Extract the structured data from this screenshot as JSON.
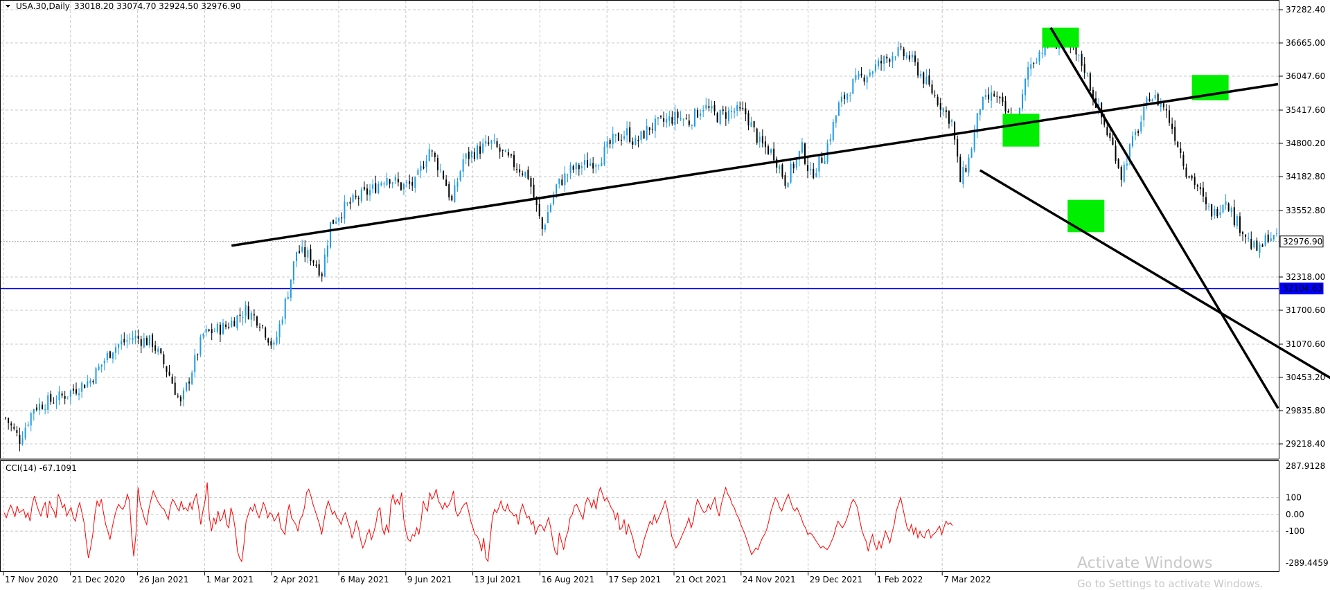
{
  "header": {
    "symbol": "USA.30,Daily",
    "ohlc": "33018.20 33074.70 32924.50 32976.90"
  },
  "indicator": {
    "label": "CCI(14) -67.1091"
  },
  "watermark": {
    "line1": "Activate Windows",
    "line2": "Go to Settings to activate Windows."
  },
  "colors": {
    "bull": "#1e9be6",
    "bear": "#000000",
    "grid": "#c8c8c8",
    "hline": "#0000ff",
    "cci": "#ff0000",
    "trend": "#000000",
    "marker": "#00ee00"
  },
  "chart_data": [
    {
      "type": "candlestick",
      "title": "USA.30,Daily",
      "y_ticks": [
        "37282.40",
        "36665.00",
        "36047.60",
        "35417.60",
        "34800.20",
        "34182.80",
        "33552.80",
        "32318.00",
        "31700.60",
        "31070.60",
        "30453.20",
        "29835.80",
        "29218.40"
      ],
      "ylim": [
        29100,
        37400
      ],
      "x_ticks": [
        "17 Nov 2020",
        "21 Dec 2020",
        "26 Jan 2021",
        "1 Mar 2021",
        "2 Apr 2021",
        "6 May 2021",
        "9 Jun 2021",
        "13 Jul 2021",
        "16 Aug 2021",
        "17 Sep 2021",
        "21 Oct 2021",
        "24 Nov 2021",
        "29 Dec 2021",
        "1 Feb 2022",
        "7 Mar 2022"
      ],
      "price_labels": [
        {
          "value": 32976.9,
          "text": "32976.90",
          "style": "current"
        },
        {
          "value": 32104.63,
          "text": "32104.63",
          "style": "hline"
        }
      ],
      "horizontal_line": 32104.63,
      "close_anchors": [
        [
          0,
          29700
        ],
        [
          5,
          29300
        ],
        [
          10,
          29900
        ],
        [
          20,
          30100
        ],
        [
          30,
          30400
        ],
        [
          38,
          31000
        ],
        [
          45,
          31200
        ],
        [
          52,
          31100
        ],
        [
          58,
          30500
        ],
        [
          62,
          29950
        ],
        [
          70,
          31250
        ],
        [
          78,
          31400
        ],
        [
          85,
          31700
        ],
        [
          90,
          31500
        ],
        [
          95,
          31000
        ],
        [
          100,
          32050
        ],
        [
          103,
          32800
        ],
        [
          108,
          32700
        ],
        [
          112,
          32400
        ],
        [
          115,
          33300
        ],
        [
          120,
          33600
        ],
        [
          125,
          33800
        ],
        [
          130,
          33950
        ],
        [
          135,
          34200
        ],
        [
          140,
          34000
        ],
        [
          145,
          34050
        ],
        [
          150,
          34700
        ],
        [
          155,
          34200
        ],
        [
          158,
          33700
        ],
        [
          162,
          34500
        ],
        [
          168,
          34700
        ],
        [
          172,
          34800
        ],
        [
          178,
          34500
        ],
        [
          185,
          34200
        ],
        [
          190,
          33200
        ],
        [
          195,
          34000
        ],
        [
          200,
          34300
        ],
        [
          205,
          34400
        ],
        [
          210,
          34500
        ],
        [
          215,
          34850
        ],
        [
          220,
          35000
        ],
        [
          223,
          34800
        ],
        [
          228,
          35100
        ],
        [
          233,
          35200
        ],
        [
          238,
          35300
        ],
        [
          242,
          35200
        ],
        [
          247,
          35500
        ],
        [
          252,
          35300
        ],
        [
          258,
          35400
        ],
        [
          262,
          35350
        ],
        [
          267,
          34800
        ],
        [
          272,
          34600
        ],
        [
          276,
          34100
        ],
        [
          282,
          34700
        ],
        [
          285,
          34200
        ],
        [
          290,
          34600
        ],
        [
          295,
          35500
        ],
        [
          300,
          35900
        ],
        [
          305,
          36100
        ],
        [
          310,
          36300
        ],
        [
          315,
          36500
        ],
        [
          320,
          36400
        ],
        [
          325,
          36000
        ],
        [
          330,
          35600
        ],
        [
          335,
          35200
        ],
        [
          338,
          34100
        ],
        [
          341,
          34500
        ],
        [
          345,
          35500
        ],
        [
          350,
          35700
        ],
        [
          355,
          35300
        ],
        [
          358,
          35100
        ],
        [
          362,
          36200
        ],
        [
          366,
          36500
        ],
        [
          370,
          36700
        ],
        [
          375,
          36600
        ],
        [
          378,
          36500
        ],
        [
          382,
          36200
        ],
        [
          385,
          35700
        ],
        [
          390,
          35000
        ],
        [
          393,
          34600
        ],
        [
          395,
          34200
        ],
        [
          398,
          34700
        ],
        [
          402,
          35200
        ],
        [
          405,
          35700
        ],
        [
          410,
          35500
        ],
        [
          413,
          35100
        ],
        [
          415,
          34800
        ],
        [
          418,
          34300
        ],
        [
          422,
          34000
        ],
        [
          425,
          33600
        ],
        [
          428,
          33500
        ],
        [
          432,
          33800
        ],
        [
          435,
          33400
        ],
        [
          438,
          33200
        ],
        [
          441,
          32900
        ],
        [
          444,
          32800
        ],
        [
          447,
          33100
        ],
        [
          450,
          33000
        ]
      ],
      "candle_count": 451,
      "trendlines": [
        {
          "from": [
            80,
            32900
          ],
          "to": [
            575,
            35900
          ]
        },
        {
          "from": [
            370,
            36950
          ],
          "to": [
            575,
            29880
          ]
        },
        {
          "from": [
            345,
            34300
          ],
          "to": [
            509,
            29200
          ]
        }
      ],
      "markers": [
        {
          "x0": 367,
          "x1": 380,
          "y0": 36950,
          "y1": 36580
        },
        {
          "x0": 420,
          "x1": 433,
          "y0": 36070,
          "y1": 35600
        },
        {
          "x0": 353,
          "x1": 366,
          "y0": 35350,
          "y1": 34740
        },
        {
          "x0": 376,
          "x1": 389,
          "y0": 33750,
          "y1": 33150
        }
      ]
    },
    {
      "type": "line",
      "title": "CCI(14) -67.1091",
      "y_ticks": [
        {
          "v": 287.9128,
          "t": "287.9128"
        },
        {
          "v": 100,
          "t": "100"
        },
        {
          "v": 0,
          "t": "0.00"
        },
        {
          "v": -100,
          "t": "-100"
        },
        {
          "v": -289.4459,
          "t": "-289.4459"
        }
      ],
      "ylim": [
        -289.4459,
        287.9128
      ],
      "series": [
        {
          "values": [
            10,
            -20,
            20,
            55,
            25,
            -15,
            50,
            10,
            20,
            30,
            -20,
            10,
            -40,
            60,
            110,
            60,
            20,
            -10,
            40,
            70,
            -20,
            80,
            40,
            20,
            -20,
            120,
            90,
            40,
            60,
            -10,
            20,
            40,
            -20,
            -40,
            30,
            70,
            10,
            -50,
            -160,
            -260,
            -200,
            -120,
            0,
            80,
            50,
            90,
            10,
            -60,
            -100,
            -150,
            -80,
            -20,
            30,
            60,
            40,
            30,
            60,
            120,
            80,
            -120,
            -250,
            -120,
            160,
            60,
            20,
            -30,
            -60,
            30,
            90,
            140,
            110,
            80,
            60,
            40,
            30,
            0,
            -30,
            50,
            90,
            70,
            40,
            20,
            80,
            30,
            40,
            20,
            70,
            30,
            90,
            120,
            40,
            -60,
            20,
            80,
            190,
            -20,
            -100,
            -20,
            -60,
            20,
            -40,
            -20,
            30,
            -60,
            -80,
            40,
            -10,
            -90,
            -220,
            -260,
            -280,
            -180,
            -40,
            0,
            40,
            20,
            60,
            10,
            -20,
            20,
            70,
            40,
            -20,
            10,
            0,
            -40,
            -20,
            10,
            -80,
            -100,
            -120,
            0,
            60,
            -20,
            -40,
            -60,
            -100,
            -30,
            -10,
            40,
            130,
            150,
            110,
            60,
            20,
            -20,
            -60,
            -120,
            -40,
            30,
            80,
            40,
            0,
            20,
            -20,
            -30,
            -60,
            -10,
            10,
            -40,
            -80,
            -140,
            -100,
            -40,
            -80,
            -150,
            -200,
            -170,
            -120,
            -90,
            -150,
            -110,
            -60,
            20,
            40,
            -80,
            -120,
            -60,
            -110,
            60,
            120,
            60,
            90,
            60,
            130,
            -30,
            -100,
            -150,
            -160,
            -120,
            -130,
            -80,
            -120,
            -40,
            80,
            40,
            20,
            130,
            90,
            110,
            150,
            80,
            60,
            30,
            70,
            40,
            60,
            90,
            140,
            20,
            -10,
            10,
            40,
            60,
            70,
            20,
            -40,
            -80,
            -120,
            -130,
            -160,
            -220,
            -140,
            -260,
            -280,
            -140,
            -20,
            30,
            10,
            40,
            80,
            30,
            20,
            60,
            20,
            10,
            -10,
            0,
            -60,
            20,
            60,
            20,
            -20,
            -10,
            -60,
            -40,
            -120,
            -80,
            -60,
            -70,
            -100,
            -60,
            -20,
            -80,
            -160,
            -220,
            -240,
            -110,
            -160,
            -210,
            -140,
            -100,
            -20,
            0,
            50,
            60,
            30,
            0,
            -30,
            60,
            100,
            80,
            40,
            90,
            30,
            120,
            160,
            120,
            80,
            100,
            70,
            40,
            20,
            -30,
            10,
            -90,
            -80,
            -30,
            -120,
            -60,
            -100,
            -140,
            -200,
            -240,
            -260,
            -220,
            -160,
            -120,
            -80,
            -40,
            -60,
            0,
            -50,
            -20,
            10,
            40,
            80,
            30,
            -40,
            -130,
            -160,
            -200,
            -180,
            -150,
            -120,
            -90,
            -60,
            -20,
            -80,
            -40,
            40,
            90,
            60,
            30,
            10,
            20,
            60,
            30,
            70,
            100,
            30,
            -10,
            60,
            110,
            160,
            120,
            100,
            60,
            40,
            0,
            -20,
            -60,
            -90,
            -120,
            -160,
            -200,
            -240,
            -220,
            -200,
            -210,
            -170,
            -140,
            -120,
            -90,
            -40,
            20,
            60,
            100,
            80,
            40,
            20,
            60,
            90,
            120,
            80,
            40,
            20,
            40,
            10,
            -20,
            -60,
            -80,
            -120,
            -110,
            -120,
            -140,
            -160,
            -180,
            -200,
            -190,
            -200,
            -210,
            -190,
            -160,
            -130,
            -80,
            -40,
            -60,
            -80,
            -60,
            -30,
            10,
            60,
            90,
            70,
            40,
            -30,
            -90,
            -130,
            -160,
            -220,
            -160,
            -120,
            -180,
            -210,
            -160,
            -200,
            -150,
            -100,
            -130,
            -170,
            -110,
            -60,
            20,
            60,
            100,
            40,
            -20,
            -80,
            -100,
            -60,
            -120,
            -80,
            -140,
            -100,
            -130,
            -140,
            -100,
            -90,
            -140,
            -120,
            -110,
            -90,
            -70,
            -120,
            -80,
            -40,
            -60,
            -50,
            -67
          ]
        }
      ]
    }
  ]
}
